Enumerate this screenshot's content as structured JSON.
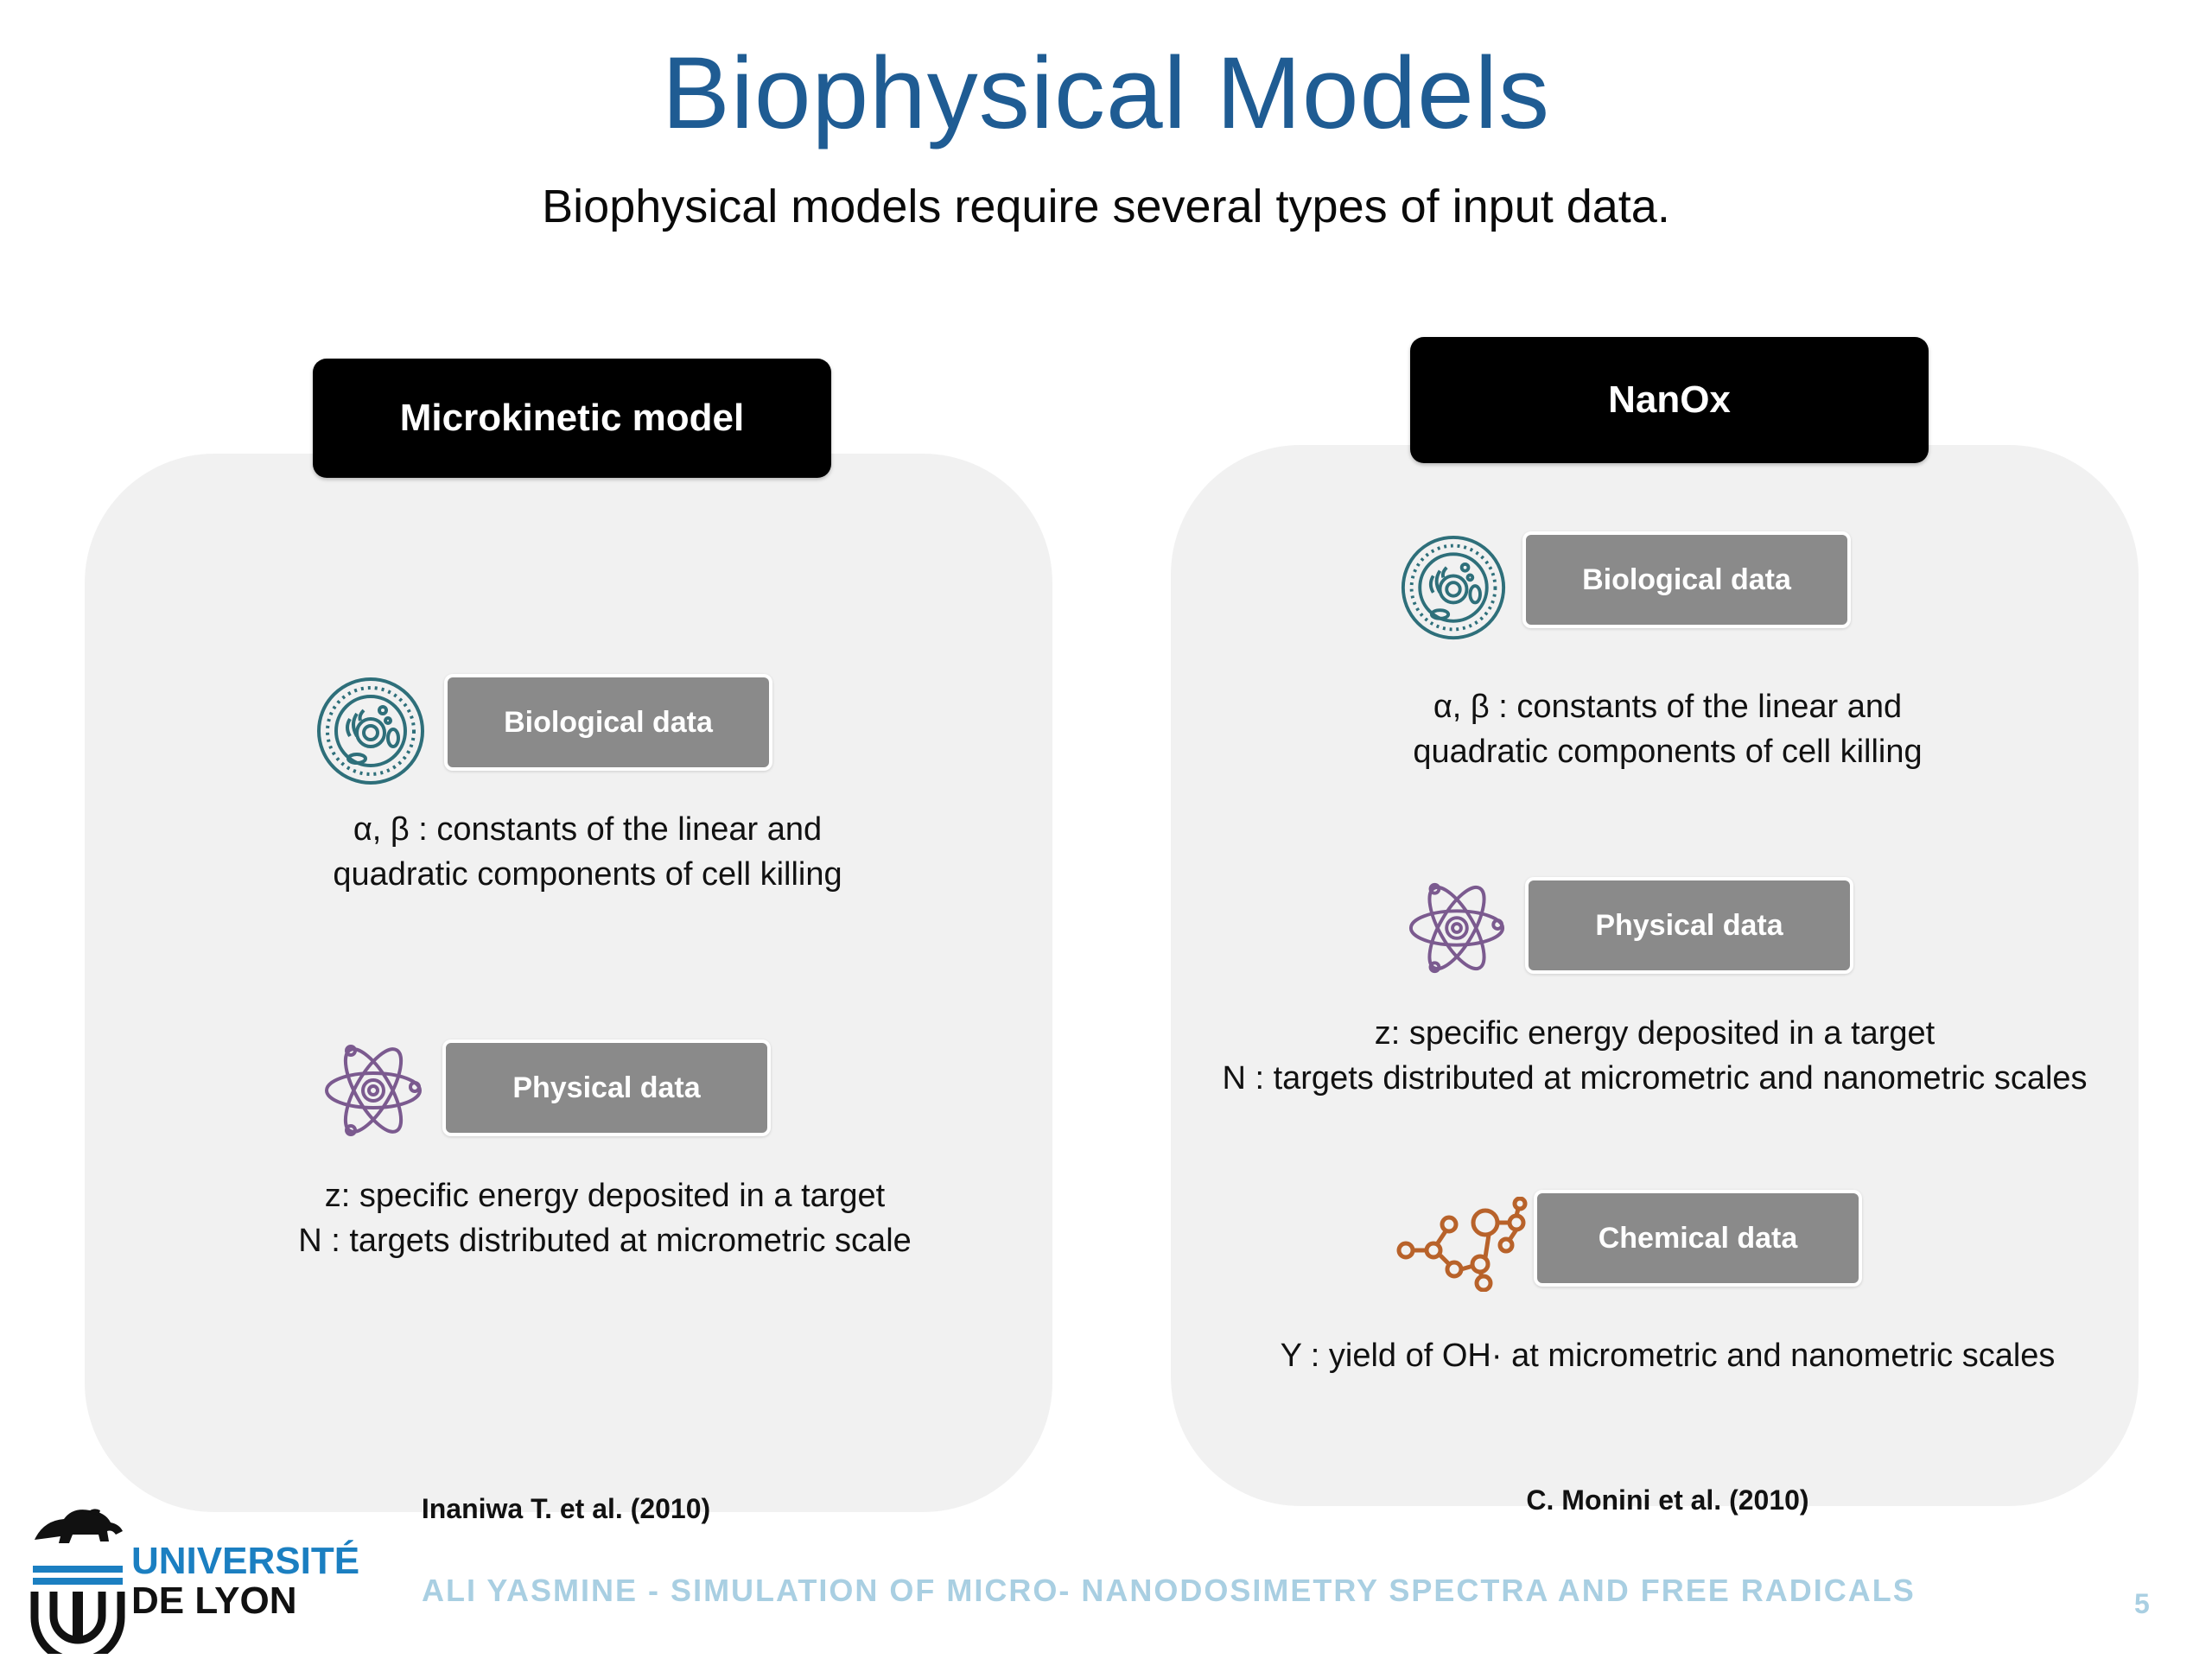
{
  "slide": {
    "title": "Biophysical Models",
    "subtitle": "Biophysical models require several types of input data."
  },
  "left_panel": {
    "model_label": "Microkinetic model",
    "biological": {
      "label": "Biological data",
      "line1": "α, β : constants of the linear and",
      "line2": "quadratic components of cell killing"
    },
    "physical": {
      "label": "Physical data",
      "line1": "z: specific energy deposited in a target",
      "line2": "N : targets distributed at micrometric scale"
    },
    "reference": "Inaniwa T. et al. (2010)"
  },
  "right_panel": {
    "model_label": "NanOx",
    "biological": {
      "label": "Biological data",
      "line1": "α, β : constants of the linear and",
      "line2": "quadratic components of cell killing"
    },
    "physical": {
      "label": "Physical data",
      "line1": "z: specific energy deposited in a target",
      "line2": "N : targets distributed at micrometric and nanometric scales"
    },
    "chemical": {
      "label": "Chemical data",
      "line1": "Y : yield of OH· at micrometric and nanometric scales"
    },
    "reference": "C. Monini et al. (2010)"
  },
  "footer": {
    "logo_line1": "UNIVERSITÉ",
    "logo_line2": "DE LYON",
    "text": "ALI YASMINE - SIMULATION OF MICRO- NANODOSIMETRY SPECTRA AND FREE RADICALS",
    "page_number": "5"
  },
  "colors": {
    "title": "#1f5c93",
    "cell_icon": "#2e6f7a",
    "atom_icon": "#7b5a8f",
    "molecule_icon": "#b8622a",
    "footer_text": "#a9cfe2",
    "logo_blue": "#1b7fc1"
  },
  "icons": [
    "cell-icon",
    "atom-icon",
    "molecule-icon",
    "lion-logo-icon"
  ]
}
